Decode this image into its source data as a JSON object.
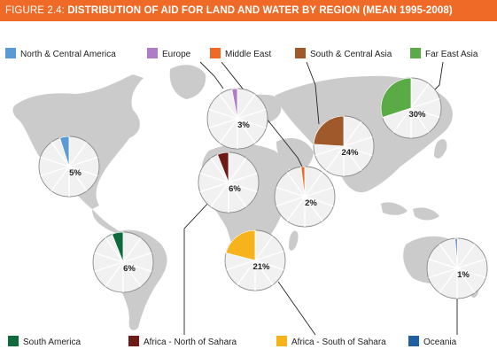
{
  "header": {
    "figure_label": "FIGURE 2.4:",
    "title": "DISTRIBUTION OF AID FOR LAND AND WATER BY REGION (MEAN 1995-2008)"
  },
  "chart_data": {
    "type": "pie",
    "title": "DISTRIBUTION OF AID FOR LAND AND WATER BY REGION (MEAN 1995-2008)",
    "unit": "%",
    "regions": [
      {
        "name": "North & Central America",
        "value": 5,
        "label": "5%",
        "color": "#5b9bd5"
      },
      {
        "name": "Europe",
        "value": 3,
        "label": "3%",
        "color": "#b07cc6"
      },
      {
        "name": "Middle East",
        "value": 2,
        "label": "2%",
        "color": "#f06a27"
      },
      {
        "name": "South & Central Asia",
        "value": 24,
        "label": "24%",
        "color": "#a0592b"
      },
      {
        "name": "Far East Asia",
        "value": 30,
        "label": "30%",
        "color": "#5aab46"
      },
      {
        "name": "South America",
        "value": 6,
        "label": "6%",
        "color": "#0e6b3c"
      },
      {
        "name": "Africa - North of Sahara",
        "value": 6,
        "label": "6%",
        "color": "#6e1a17"
      },
      {
        "name": "Africa - South of Sahara",
        "value": 21,
        "label": "21%",
        "color": "#f6b31b"
      },
      {
        "name": "Oceania",
        "value": 1,
        "label": "1%",
        "color": "#1f5fa3"
      }
    ],
    "legend": {
      "top": [
        "North & Central America",
        "Europe",
        "Middle East",
        "South & Central Asia",
        "Far East Asia"
      ],
      "bottom": [
        "South America",
        "Africa - North of Sahara",
        "Africa - South of Sahara",
        "Oceania"
      ]
    }
  }
}
